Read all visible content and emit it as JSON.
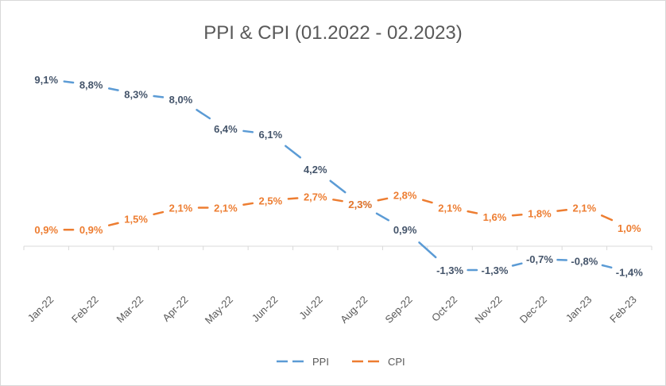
{
  "chart_data": {
    "type": "line",
    "title": "PPI & CPI (01.2022 - 02.2023)",
    "xlabel": "",
    "ylabel": "",
    "categories": [
      "Jan-22",
      "Feb-22",
      "Mar-22",
      "Apr-22",
      "May-22",
      "Jun-22",
      "Jul-22",
      "Aug-22",
      "Sep-22",
      "Oct-22",
      "Nov-22",
      "Dec-22",
      "Jan-23",
      "Feb-23"
    ],
    "ylim": [
      -2,
      10
    ],
    "grid": false,
    "legend_position": "bottom",
    "series": [
      {
        "name": "PPI",
        "color": "#5b9bd5",
        "label_color": "#44546a",
        "values": [
          9.1,
          8.8,
          8.3,
          8.0,
          6.4,
          6.1,
          4.2,
          2.3,
          0.9,
          -1.3,
          -1.3,
          -0.7,
          -0.8,
          -1.4
        ],
        "labels": [
          "9,1%",
          "8,8%",
          "8,3%",
          "8,0%",
          "6,4%",
          "6,1%",
          "4,2%",
          "2,3%",
          "0,9%",
          "-1,3%",
          "-1,3%",
          "-0,7%",
          "-0,8%",
          "-1,4%"
        ]
      },
      {
        "name": "CPI",
        "color": "#ed7d31",
        "label_color": "#ed7d31",
        "values": [
          0.9,
          0.9,
          1.5,
          2.1,
          2.1,
          2.5,
          2.7,
          2.3,
          2.8,
          2.1,
          1.6,
          1.8,
          2.1,
          1.0
        ],
        "labels": [
          "0,9%",
          "0,9%",
          "1,5%",
          "2,1%",
          "2,1%",
          "2,5%",
          "2,7%",
          "2,3%",
          "2,8%",
          "2,1%",
          "1,6%",
          "1,8%",
          "2,1%",
          "1,0%"
        ]
      }
    ]
  }
}
